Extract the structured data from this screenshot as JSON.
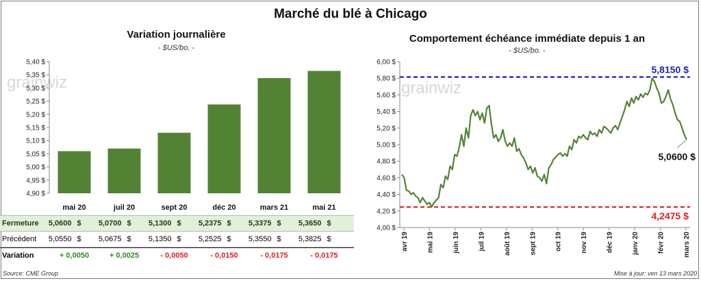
{
  "main_title": "Marché du blé à Chicago",
  "watermark": "grainwiz",
  "colors": {
    "bar": "#548235",
    "line": "#548235",
    "max_line": "#1f1fbf",
    "min_line": "#e02020",
    "pos": "#2e8b1f",
    "neg": "#e02020"
  },
  "left": {
    "title": "Variation  journalière",
    "subtitle": "- $US/bo. -"
  },
  "right": {
    "title": "Comportement  échéance immédiate depuis 1 an",
    "subtitle": "- $US/bo. -"
  },
  "table": {
    "row_close_label": "Fermeture",
    "row_prev_label": "Précédent",
    "row_var_label": "Variation",
    "currency": "$",
    "close": [
      "5,0600",
      "5,0700",
      "5,1300",
      "5,2375",
      "5,3375",
      "5,3650"
    ],
    "prev": [
      "5,0550",
      "5,0675",
      "5,1350",
      "5,2525",
      "5,3550",
      "5,3825"
    ],
    "var": [
      "+ 0,0050",
      "+ 0,0025",
      "- 0,0050",
      "- 0,0150",
      "- 0,0175",
      "- 0,0175"
    ]
  },
  "footer": {
    "source": "Source: CME Group",
    "update": "Mise à jour: ven 13 mars 2020"
  },
  "chart_data": [
    {
      "type": "bar",
      "title": "Variation  journalière",
      "subtitle": "- $US/bo. -",
      "categories": [
        "mai 20",
        "juil 20",
        "sept 20",
        "déc 20",
        "mars 21",
        "mai 21"
      ],
      "values": [
        5.06,
        5.07,
        5.13,
        5.2375,
        5.3375,
        5.365
      ],
      "ylim": [
        4.9,
        5.4
      ],
      "yticks": [
        "4,90 $",
        "4,95 $",
        "5,00 $",
        "5,05 $",
        "5,10 $",
        "5,15 $",
        "5,20 $",
        "5,25 $",
        "5,30 $",
        "5,35 $",
        "5,40 $"
      ],
      "grid": false
    },
    {
      "type": "line",
      "title": "Comportement  échéance immédiate depuis 1 an",
      "subtitle": "- $US/bo. -",
      "ylim": [
        4.0,
        6.0
      ],
      "yticks": [
        "4,00 $",
        "4,20 $",
        "4,40 $",
        "4,60 $",
        "4,80 $",
        "5,00 $",
        "5,20 $",
        "5,40 $",
        "5,60 $",
        "5,80 $",
        "6,00 $"
      ],
      "x_labels": [
        "avr 19",
        "mai 19",
        "juin 19",
        "juil 19",
        "août 19",
        "sept 19",
        "oct 19",
        "nov 19",
        "déc 19",
        "janv 20",
        "févr 20",
        "mars 20"
      ],
      "max_value": 5.815,
      "max_label": "5,8150 $",
      "min_value": 4.2475,
      "min_label": "4,2475 $",
      "last_value": 5.06,
      "last_label": "5,0600 $",
      "series": [
        {
          "values": [
            4.64,
            4.6,
            4.45,
            4.44,
            4.4,
            4.42,
            4.38,
            4.36,
            4.3,
            4.36,
            4.32,
            4.28,
            4.3,
            4.25,
            4.3,
            4.33,
            4.36,
            4.52,
            4.48,
            4.62,
            4.58,
            4.74,
            4.7,
            4.88,
            4.86,
            4.97,
            5.12,
            4.98,
            5.2,
            5.08,
            5.35,
            5.42,
            5.35,
            5.4,
            5.3,
            5.38,
            5.26,
            5.44,
            5.47,
            5.25,
            5.08,
            5.12,
            5.04,
            5.08,
            5.18,
            5.04,
            4.98,
            5.02,
            4.98,
            5.08,
            4.92,
            4.95,
            4.88,
            4.84,
            4.78,
            4.7,
            4.74,
            4.66,
            4.72,
            4.62,
            4.6,
            4.56,
            4.64,
            4.53,
            4.72,
            4.76,
            4.82,
            4.85,
            4.88,
            4.9,
            4.86,
            4.89,
            4.86,
            4.98,
            4.94,
            5.06,
            5.02,
            5.1,
            5.08,
            5.12,
            5.08,
            5.06,
            5.16,
            5.12,
            5.14,
            5.1,
            5.18,
            5.14,
            5.22,
            5.2,
            5.17,
            5.14,
            5.2,
            5.23,
            5.18,
            5.26,
            5.34,
            5.42,
            5.52,
            5.46,
            5.56,
            5.5,
            5.58,
            5.54,
            5.61,
            5.57,
            5.62,
            5.6,
            5.66,
            5.8,
            5.76,
            5.68,
            5.62,
            5.5,
            5.52,
            5.58,
            5.66,
            5.55,
            5.48,
            5.38,
            5.3,
            5.28,
            5.2,
            5.12,
            5.06
          ]
        }
      ]
    }
  ]
}
